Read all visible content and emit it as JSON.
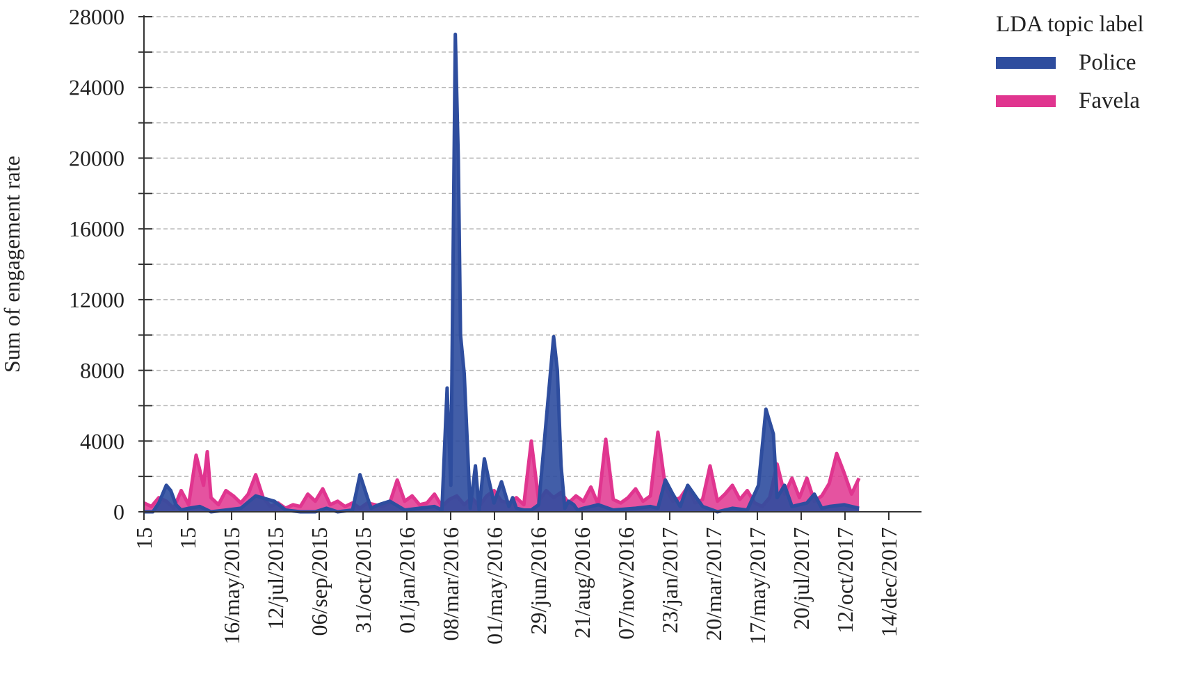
{
  "chart_data": {
    "type": "area",
    "ylabel": "Sum of engagement rate",
    "ylim": [
      0,
      28000
    ],
    "y_ticks": [
      "0",
      "4000",
      "8000",
      "12000",
      "16000",
      "20000",
      "24000",
      "28000"
    ],
    "y_tick_values": [
      0,
      4000,
      8000,
      12000,
      16000,
      20000,
      24000,
      28000
    ],
    "x_ticks": [
      "15",
      "15",
      "16/may/2015",
      "12/jul/2015",
      "06/sep/2015",
      "31/oct/2015",
      "01/jan/2016",
      "08/mar/2016",
      "01/may/2016",
      "29/jun/2016",
      "21/aug/2016",
      "07/nov/2016",
      "23/jan/2017",
      "20/mar/2017",
      "17/may/2017",
      "20/jul/2017",
      "12/oct/2017",
      "14/dec/2017"
    ],
    "x_range": [
      0,
      100
    ],
    "grid": true,
    "legend": {
      "title": "LDA topic label",
      "position": "top-right"
    },
    "series": [
      {
        "name": "Police",
        "color": "#2e4d9e",
        "x": [
          0,
          1.2,
          2,
          3,
          3.6,
          4.3,
          5,
          6,
          7.5,
          9,
          11,
          13,
          15,
          17.5,
          19,
          21,
          23,
          24.5,
          26,
          28,
          29,
          30,
          30.5,
          31.5,
          33,
          35,
          37,
          39,
          40,
          40.7,
          41.2,
          41.8,
          42.2,
          42.5,
          43,
          43.8,
          44.5,
          45,
          45.7,
          46.3,
          47,
          48,
          49,
          49.5,
          50,
          51,
          52,
          53,
          55,
          55.5,
          56,
          56.5,
          57,
          57.7,
          58.2,
          59,
          60,
          61,
          63,
          66,
          68,
          69,
          70,
          71,
          72,
          73,
          75,
          77,
          79,
          81,
          82.5,
          83.5,
          84.5,
          85,
          86,
          87,
          89,
          90,
          91,
          92,
          94,
          96
        ],
        "y": [
          0,
          0,
          500,
          1500,
          1200,
          400,
          100,
          200,
          300,
          0,
          100,
          200,
          900,
          600,
          100,
          0,
          0,
          200,
          0,
          100,
          2100,
          800,
          200,
          400,
          600,
          100,
          200,
          300,
          100,
          7000,
          1500,
          27000,
          20000,
          10000,
          7800,
          200,
          2600,
          100,
          3000,
          1800,
          500,
          1700,
          300,
          800,
          200,
          100,
          100,
          400,
          9900,
          8000,
          2600,
          200,
          600,
          400,
          100,
          200,
          300,
          400,
          100,
          200,
          300,
          200,
          1800,
          1000,
          300,
          1500,
          300,
          0,
          200,
          100,
          1500,
          5800,
          4400,
          800,
          1500,
          300,
          500,
          1000,
          200,
          300,
          400,
          200
        ]
      },
      {
        "name": "Favela",
        "color": "#e0358f",
        "x": [
          0,
          1,
          2,
          3,
          4,
          5,
          6,
          7,
          8,
          8.5,
          9,
          10,
          11,
          12,
          13,
          14,
          15,
          16,
          17,
          18,
          19,
          20,
          21,
          22,
          23,
          24,
          25,
          26,
          27,
          28,
          29,
          30,
          31,
          32,
          33,
          34,
          35,
          36,
          37,
          38,
          39,
          40,
          41,
          42,
          43,
          44,
          45,
          46,
          47,
          48,
          49,
          50,
          51,
          52,
          53,
          54,
          55,
          56,
          57,
          58,
          59,
          60,
          61,
          62,
          63,
          64,
          65,
          66,
          67,
          68,
          69,
          70,
          71,
          72,
          73,
          74,
          75,
          76,
          77,
          78,
          79,
          80,
          81,
          82,
          83,
          84,
          85,
          86,
          87,
          88,
          89,
          90,
          91,
          92,
          93,
          94,
          95,
          96
        ],
        "y": [
          500,
          300,
          800,
          600,
          200,
          1200,
          400,
          3200,
          1500,
          3400,
          800,
          400,
          1200,
          900,
          500,
          1000,
          2100,
          800,
          300,
          500,
          200,
          400,
          300,
          1000,
          600,
          1300,
          400,
          600,
          300,
          500,
          200,
          500,
          400,
          300,
          500,
          1800,
          600,
          900,
          400,
          500,
          1000,
          300,
          700,
          900,
          400,
          800,
          300,
          900,
          1200,
          600,
          500,
          800,
          400,
          4000,
          600,
          1200,
          800,
          1100,
          500,
          900,
          600,
          1400,
          400,
          4100,
          700,
          500,
          800,
          1300,
          600,
          900,
          4500,
          1400,
          600,
          800,
          1400,
          500,
          700,
          2600,
          600,
          1000,
          1500,
          700,
          1200,
          500,
          300,
          800,
          2700,
          1000,
          1900,
          800,
          1900,
          600,
          900,
          1600,
          3300,
          2200,
          1000,
          1900
        ]
      }
    ]
  }
}
